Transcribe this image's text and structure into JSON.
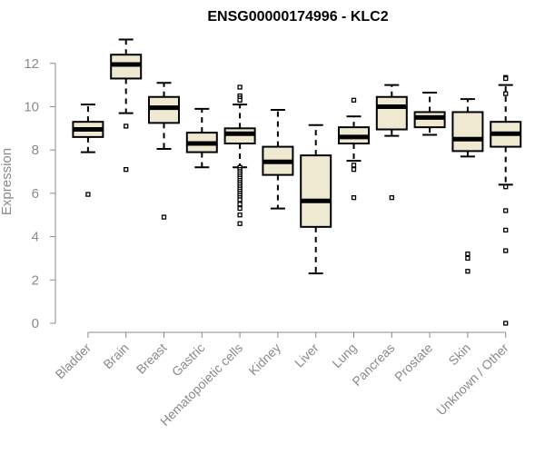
{
  "chart_data": {
    "type": "box",
    "title": "ENSG00000174996 - KLC2",
    "xlabel": "",
    "ylabel": "Expression",
    "ylim": [
      0,
      13.5
    ],
    "yticks": [
      0,
      2,
      4,
      6,
      8,
      10,
      12
    ],
    "grid": false,
    "colors": {
      "box_fill": "#efe9d2",
      "stroke": "#000000",
      "axis": "#8a8a8a"
    },
    "categories": [
      "Bladder",
      "Brain",
      "Breast",
      "Gastric",
      "Hematopoietic cells",
      "Kidney",
      "Liver",
      "Lung",
      "Pancreas",
      "Prostate",
      "Skin",
      "Unknown / Other"
    ],
    "boxes": [
      {
        "whislo": 7.9,
        "q1": 8.6,
        "med": 8.95,
        "q3": 9.3,
        "whishi": 10.1,
        "fliers": [
          5.95
        ]
      },
      {
        "whislo": 9.7,
        "q1": 11.3,
        "med": 11.95,
        "q3": 12.4,
        "whishi": 13.1,
        "fliers": [
          9.1,
          7.1
        ]
      },
      {
        "whislo": 8.05,
        "q1": 9.25,
        "med": 9.95,
        "q3": 10.45,
        "whishi": 11.1,
        "fliers": [
          4.9
        ]
      },
      {
        "whislo": 7.2,
        "q1": 7.9,
        "med": 8.3,
        "q3": 8.8,
        "whishi": 9.9,
        "fliers": []
      },
      {
        "whislo": 7.2,
        "q1": 8.3,
        "med": 8.75,
        "q3": 9.0,
        "whishi": 10.1,
        "fliers": [
          10.9,
          10.5,
          10.4,
          10.3,
          7.2,
          7.1,
          7.0,
          6.9,
          6.8,
          6.7,
          6.6,
          6.5,
          6.4,
          6.3,
          6.2,
          6.1,
          6.0,
          5.9,
          5.8,
          5.7,
          5.5,
          5.3,
          5.0,
          4.6
        ]
      },
      {
        "whislo": 5.3,
        "q1": 6.85,
        "med": 7.45,
        "q3": 8.15,
        "whishi": 9.85,
        "fliers": []
      },
      {
        "whislo": 2.3,
        "q1": 4.45,
        "med": 5.65,
        "q3": 7.75,
        "whishi": 9.15,
        "fliers": []
      },
      {
        "whislo": 7.5,
        "q1": 8.3,
        "med": 8.6,
        "q3": 9.05,
        "whishi": 9.55,
        "fliers": [
          10.3,
          7.3,
          7.1,
          5.8
        ]
      },
      {
        "whislo": 8.65,
        "q1": 8.95,
        "med": 10.0,
        "q3": 10.45,
        "whishi": 11.0,
        "fliers": [
          5.8
        ]
      },
      {
        "whislo": 8.7,
        "q1": 9.05,
        "med": 9.5,
        "q3": 9.75,
        "whishi": 10.65,
        "fliers": []
      },
      {
        "whislo": 7.7,
        "q1": 7.95,
        "med": 8.5,
        "q3": 9.75,
        "whishi": 10.35,
        "fliers": [
          3.2,
          3.0,
          2.4
        ]
      },
      {
        "whislo": 6.4,
        "q1": 8.15,
        "med": 8.75,
        "q3": 9.3,
        "whishi": 11.0,
        "fliers": [
          11.35,
          11.3,
          10.6,
          6.3,
          5.2,
          4.3,
          3.35,
          0.0
        ]
      }
    ]
  }
}
